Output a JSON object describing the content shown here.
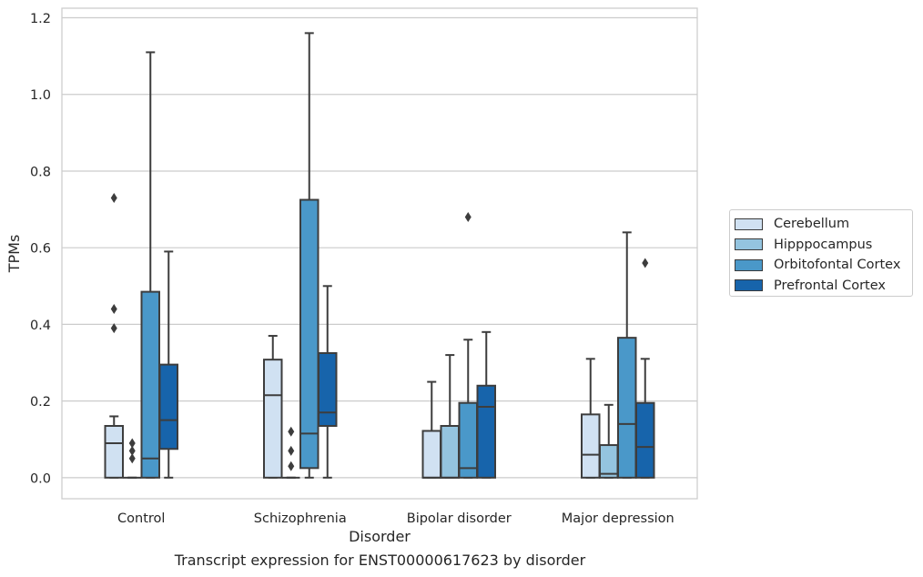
{
  "caption": "Transcript expression for ENST00000617623 by disorder",
  "chart_data": {
    "type": "box",
    "xlabel": "Disorder",
    "ylabel": "TPMs",
    "ylim": [
      -0.055,
      1.225
    ],
    "yticks": [
      0.0,
      0.2,
      0.4,
      0.6,
      0.8,
      1.0,
      1.2
    ],
    "ytick_labels": [
      "0.0",
      "0.2",
      "0.4",
      "0.6",
      "0.8",
      "1.0",
      "1.2"
    ],
    "grid": "horizontal",
    "legend_position": "right",
    "categories": [
      "Control",
      "Schizophrenia",
      "Bipolar disorder",
      "Major depression"
    ],
    "series": [
      {
        "name": "Cerebellum",
        "color": "#d0e1f2",
        "boxes": [
          {
            "whislo": 0.0,
            "q1": 0.0,
            "med": 0.09,
            "q3": 0.135,
            "whishi": 0.16,
            "fliers": [
              0.39,
              0.44,
              0.73
            ]
          },
          {
            "whislo": 0.0,
            "q1": 0.0,
            "med": 0.215,
            "q3": 0.308,
            "whishi": 0.37,
            "fliers": []
          },
          {
            "whislo": 0.0,
            "q1": 0.0,
            "med": 0.0,
            "q3": 0.122,
            "whishi": 0.25,
            "fliers": []
          },
          {
            "whislo": 0.0,
            "q1": 0.0,
            "med": 0.06,
            "q3": 0.165,
            "whishi": 0.31,
            "fliers": []
          }
        ]
      },
      {
        "name": "Hipppocampus",
        "color": "#94c4df",
        "boxes": [
          {
            "whislo": 0.0,
            "q1": 0.0,
            "med": 0.0,
            "q3": 0.0,
            "whishi": 0.0,
            "fliers": [
              0.05,
              0.07,
              0.09
            ]
          },
          {
            "whislo": 0.0,
            "q1": 0.0,
            "med": 0.0,
            "q3": 0.0,
            "whishi": 0.0,
            "fliers": [
              0.03,
              0.07,
              0.12
            ]
          },
          {
            "whislo": 0.0,
            "q1": 0.0,
            "med": 0.0,
            "q3": 0.135,
            "whishi": 0.32,
            "fliers": []
          },
          {
            "whislo": 0.0,
            "q1": 0.0,
            "med": 0.01,
            "q3": 0.085,
            "whishi": 0.19,
            "fliers": []
          }
        ]
      },
      {
        "name": "Orbitofontal Cortex",
        "color": "#4a98c9",
        "boxes": [
          {
            "whislo": 0.0,
            "q1": 0.0,
            "med": 0.05,
            "q3": 0.485,
            "whishi": 1.11,
            "fliers": []
          },
          {
            "whislo": 0.0,
            "q1": 0.025,
            "med": 0.115,
            "q3": 0.725,
            "whishi": 1.16,
            "fliers": []
          },
          {
            "whislo": 0.0,
            "q1": 0.0,
            "med": 0.025,
            "q3": 0.195,
            "whishi": 0.36,
            "fliers": [
              0.68
            ]
          },
          {
            "whislo": 0.0,
            "q1": 0.0,
            "med": 0.14,
            "q3": 0.365,
            "whishi": 0.64,
            "fliers": []
          }
        ]
      },
      {
        "name": "Prefrontal Cortex",
        "color": "#1764ab",
        "boxes": [
          {
            "whislo": 0.0,
            "q1": 0.075,
            "med": 0.15,
            "q3": 0.295,
            "whishi": 0.59,
            "fliers": []
          },
          {
            "whislo": 0.0,
            "q1": 0.135,
            "med": 0.17,
            "q3": 0.325,
            "whishi": 0.5,
            "fliers": []
          },
          {
            "whislo": 0.0,
            "q1": 0.0,
            "med": 0.185,
            "q3": 0.24,
            "whishi": 0.38,
            "fliers": []
          },
          {
            "whislo": 0.0,
            "q1": 0.0,
            "med": 0.08,
            "q3": 0.195,
            "whishi": 0.31,
            "fliers": [
              0.56
            ]
          }
        ]
      }
    ]
  }
}
